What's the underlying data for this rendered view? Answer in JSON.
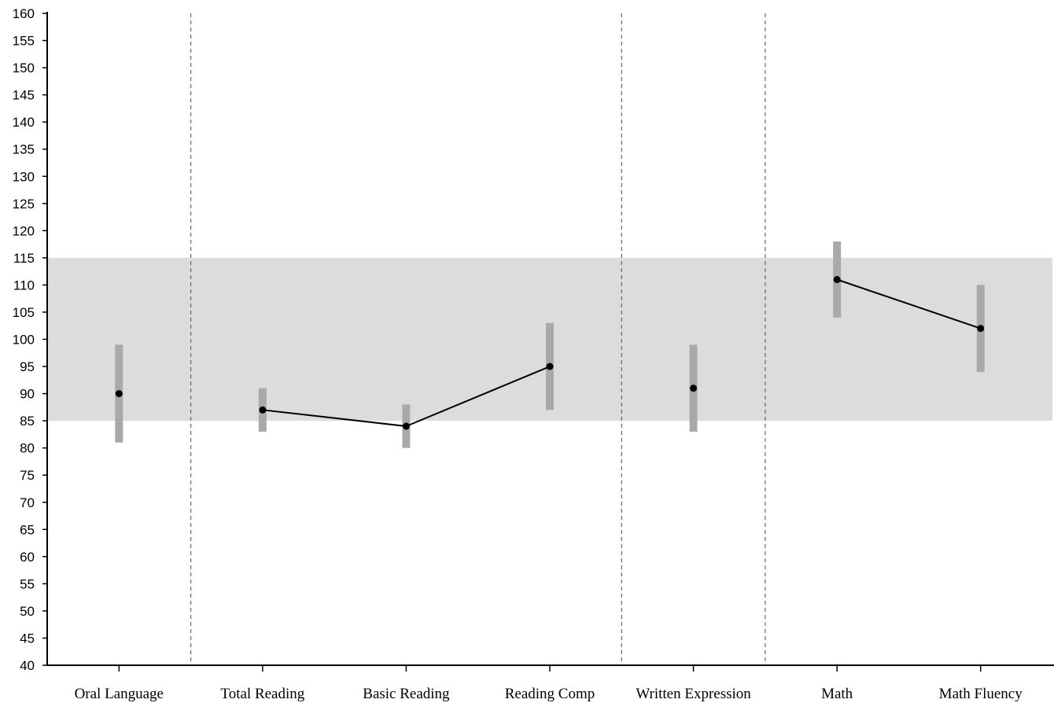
{
  "chart_data": {
    "type": "scatter",
    "categories": [
      "Oral Language",
      "Total Reading",
      "Basic Reading",
      "Reading Comp",
      "Written Expression",
      "Math",
      "Math Fluency"
    ],
    "series": [
      {
        "points": [
          {
            "value": 90,
            "low": 81,
            "high": 99
          },
          {
            "value": 87,
            "low": 83,
            "high": 91
          },
          {
            "value": 84,
            "low": 80,
            "high": 88
          },
          {
            "value": 95,
            "low": 87,
            "high": 103
          },
          {
            "value": 91,
            "low": 83,
            "high": 99
          },
          {
            "value": 111,
            "low": 104,
            "high": 118
          },
          {
            "value": 102,
            "low": 94,
            "high": 110
          }
        ]
      }
    ],
    "connected_groups": [
      [
        1,
        2,
        3
      ],
      [
        5,
        6
      ]
    ],
    "group_dividers_after": [
      0,
      3,
      4
    ],
    "average_band": [
      85,
      115
    ],
    "ylim": [
      40,
      160
    ],
    "yticks": [
      40,
      45,
      50,
      55,
      60,
      65,
      70,
      75,
      80,
      85,
      90,
      95,
      100,
      105,
      110,
      115,
      120,
      125,
      130,
      135,
      140,
      145,
      150,
      155,
      160
    ],
    "grid": false,
    "title": "",
    "xlabel": "",
    "ylabel": "",
    "colors": {
      "band": "#dcdcdc",
      "error_bar": "#a9a9a9",
      "point": "#000000",
      "line": "#000000",
      "divider": "#666666"
    }
  }
}
